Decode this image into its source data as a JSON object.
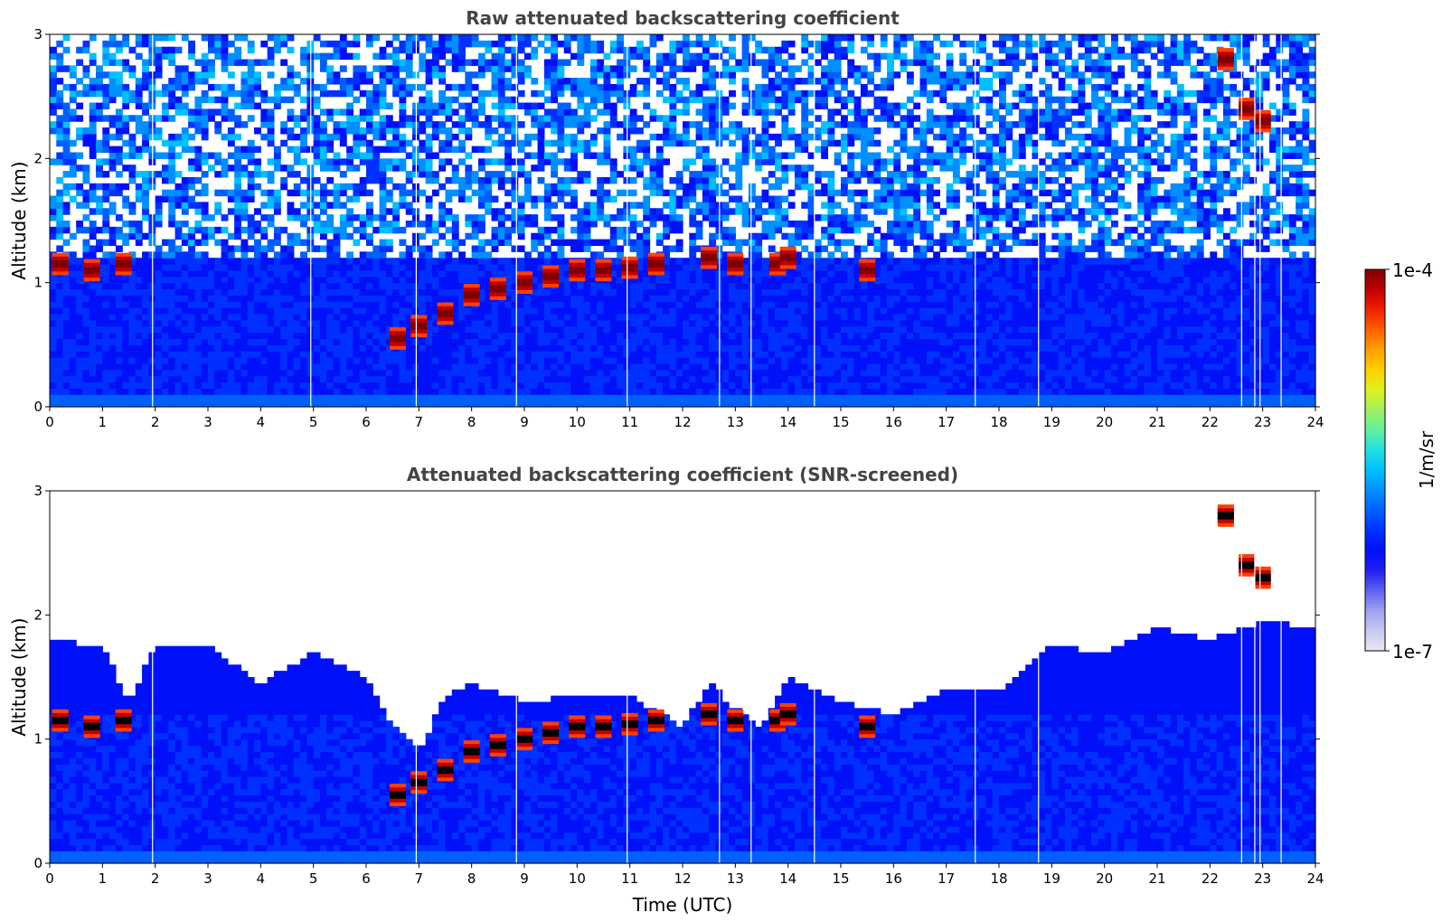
{
  "chart_data": [
    {
      "type": "heatmap",
      "title": "Raw attenuated backscattering coefficient",
      "xlabel": "",
      "ylabel": "Altitude (km)",
      "xlim": [
        0,
        24
      ],
      "ylim": [
        0,
        3
      ],
      "xticks": [
        "0",
        "1",
        "2",
        "3",
        "4",
        "5",
        "6",
        "7",
        "8",
        "9",
        "10",
        "11",
        "12",
        "13",
        "14",
        "15",
        "16",
        "17",
        "18",
        "19",
        "20",
        "21",
        "22",
        "23",
        "24"
      ],
      "yticks": [
        "0",
        "1",
        "2",
        "3"
      ],
      "screened": false,
      "cloud_base_km": [
        {
          "t": 0.2,
          "z": 1.15
        },
        {
          "t": 0.8,
          "z": 1.1
        },
        {
          "t": 1.4,
          "z": 1.15
        },
        {
          "t": 6.6,
          "z": 0.55
        },
        {
          "t": 7.0,
          "z": 0.65
        },
        {
          "t": 7.5,
          "z": 0.75
        },
        {
          "t": 8.0,
          "z": 0.9
        },
        {
          "t": 8.5,
          "z": 0.95
        },
        {
          "t": 9.0,
          "z": 1.0
        },
        {
          "t": 9.5,
          "z": 1.05
        },
        {
          "t": 10.0,
          "z": 1.1
        },
        {
          "t": 10.5,
          "z": 1.1
        },
        {
          "t": 11.0,
          "z": 1.12
        },
        {
          "t": 11.5,
          "z": 1.15
        },
        {
          "t": 12.5,
          "z": 1.2
        },
        {
          "t": 13.0,
          "z": 1.15
        },
        {
          "t": 13.8,
          "z": 1.15
        },
        {
          "t": 14.0,
          "z": 1.2
        },
        {
          "t": 15.5,
          "z": 1.1
        },
        {
          "t": 22.3,
          "z": 2.8
        },
        {
          "t": 22.7,
          "z": 2.4
        },
        {
          "t": 23.0,
          "z": 2.3
        }
      ],
      "missing_data_hours": [
        1.95,
        4.95,
        6.95,
        8.85,
        10.95,
        12.7,
        13.3,
        14.5,
        17.55,
        18.75,
        22.6,
        22.85,
        22.95,
        23.35
      ]
    },
    {
      "type": "heatmap",
      "title": "Attenuated backscattering coefficient (SNR-screened)",
      "xlabel": "Time (UTC)",
      "ylabel": "Altitude (km)",
      "xlim": [
        0,
        24
      ],
      "ylim": [
        0,
        3
      ],
      "xticks": [
        "0",
        "1",
        "2",
        "3",
        "4",
        "5",
        "6",
        "7",
        "8",
        "9",
        "10",
        "11",
        "12",
        "13",
        "14",
        "15",
        "16",
        "17",
        "18",
        "19",
        "20",
        "21",
        "22",
        "23",
        "24"
      ],
      "yticks": [
        "0",
        "1",
        "2",
        "3"
      ],
      "screened": true,
      "signal_top_km": [
        {
          "t": 0,
          "z": 1.8
        },
        {
          "t": 1.0,
          "z": 1.75
        },
        {
          "t": 1.5,
          "z": 1.3
        },
        {
          "t": 2.0,
          "z": 1.75
        },
        {
          "t": 3.0,
          "z": 1.75
        },
        {
          "t": 4.0,
          "z": 1.45
        },
        {
          "t": 5.0,
          "z": 1.7
        },
        {
          "t": 6.0,
          "z": 1.5
        },
        {
          "t": 6.5,
          "z": 1.1
        },
        {
          "t": 7.0,
          "z": 0.9
        },
        {
          "t": 7.5,
          "z": 1.35
        },
        {
          "t": 8.0,
          "z": 1.45
        },
        {
          "t": 9.0,
          "z": 1.3
        },
        {
          "t": 10.0,
          "z": 1.35
        },
        {
          "t": 11.0,
          "z": 1.35
        },
        {
          "t": 12.0,
          "z": 1.1
        },
        {
          "t": 12.5,
          "z": 1.45
        },
        {
          "t": 13.0,
          "z": 1.25
        },
        {
          "t": 13.5,
          "z": 1.1
        },
        {
          "t": 14.0,
          "z": 1.5
        },
        {
          "t": 15.0,
          "z": 1.3
        },
        {
          "t": 16.0,
          "z": 1.2
        },
        {
          "t": 17.0,
          "z": 1.4
        },
        {
          "t": 18.0,
          "z": 1.4
        },
        {
          "t": 19.0,
          "z": 1.75
        },
        {
          "t": 20.0,
          "z": 1.7
        },
        {
          "t": 21.0,
          "z": 1.9
        },
        {
          "t": 22.0,
          "z": 1.8
        },
        {
          "t": 23.0,
          "z": 1.95
        },
        {
          "t": 24.0,
          "z": 1.9
        }
      ],
      "cloud_base_km": [
        {
          "t": 0.2,
          "z": 1.15
        },
        {
          "t": 0.8,
          "z": 1.1
        },
        {
          "t": 1.4,
          "z": 1.15
        },
        {
          "t": 6.6,
          "z": 0.55
        },
        {
          "t": 7.0,
          "z": 0.65
        },
        {
          "t": 7.5,
          "z": 0.75
        },
        {
          "t": 8.0,
          "z": 0.9
        },
        {
          "t": 8.5,
          "z": 0.95
        },
        {
          "t": 9.0,
          "z": 1.0
        },
        {
          "t": 9.5,
          "z": 1.05
        },
        {
          "t": 10.0,
          "z": 1.1
        },
        {
          "t": 10.5,
          "z": 1.1
        },
        {
          "t": 11.0,
          "z": 1.12
        },
        {
          "t": 11.5,
          "z": 1.15
        },
        {
          "t": 12.5,
          "z": 1.2
        },
        {
          "t": 13.0,
          "z": 1.15
        },
        {
          "t": 13.8,
          "z": 1.15
        },
        {
          "t": 14.0,
          "z": 1.2
        },
        {
          "t": 15.5,
          "z": 1.1
        },
        {
          "t": 22.3,
          "z": 2.8
        },
        {
          "t": 22.7,
          "z": 2.4
        },
        {
          "t": 23.0,
          "z": 2.3
        }
      ],
      "missing_data_hours": [
        1.95,
        6.95,
        8.85,
        10.95,
        12.7,
        13.3,
        14.5,
        17.55,
        18.75,
        22.6,
        22.85,
        22.95,
        23.35
      ]
    }
  ],
  "colorbar": {
    "label": "1/m/sr",
    "max_label": "1e-4",
    "min_label": "1e-7",
    "colors": [
      "#e8e8f8",
      "#c8c8f0",
      "#a0a0f0",
      "#6060f0",
      "#2020f0",
      "#0010f8",
      "#0030ff",
      "#0060ff",
      "#0090ff",
      "#00c0ff",
      "#20e0e0",
      "#60f0a0",
      "#a0f060",
      "#e0f020",
      "#ffd000",
      "#ffa000",
      "#ff6000",
      "#f02000",
      "#c00000",
      "#800000"
    ]
  }
}
